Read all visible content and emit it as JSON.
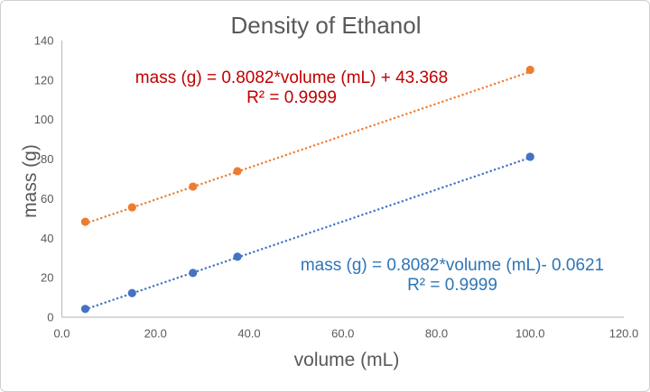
{
  "window": {
    "background": "#ffffff",
    "border_color": "#cfcfcf"
  },
  "chart_data": {
    "type": "scatter",
    "title": "Density of Ethanol",
    "xlabel": "volume (mL)",
    "ylabel": "mass (g)",
    "xlim": [
      0,
      120
    ],
    "ylim": [
      0,
      140
    ],
    "grid": false,
    "legend": "none",
    "title_color": "#595959",
    "axis_label_color": "#595959",
    "tick_label_color": "#595959",
    "axis_line_color": "#bfbfbf",
    "x_tick_values": [
      0,
      20,
      40,
      60,
      80,
      100,
      120
    ],
    "x_tick_labels": [
      "0.0",
      "20.0",
      "40.0",
      "60.0",
      "80.0",
      "100.0",
      "120.0"
    ],
    "y_tick_values": [
      0,
      20,
      40,
      60,
      80,
      100,
      120,
      140
    ],
    "y_tick_labels": [
      "0",
      "20",
      "40",
      "60",
      "80",
      "100",
      "120",
      "140"
    ],
    "series": [
      {
        "id": "orange",
        "marker": "circle",
        "marker_color": "#ED7D31",
        "x": [
          5.0,
          15.0,
          28.0,
          37.5,
          100.0
        ],
        "y": [
          48.3,
          55.6,
          66.1,
          73.9,
          125.2
        ],
        "trendline": {
          "style": "dotted",
          "slope": 0.8082,
          "intercept": 43.368,
          "x_start": 5.0,
          "x_end": 100.0
        },
        "annotation": {
          "equation": "mass (g) = 0.8082*volume (mL) + 43.368",
          "r2": "R² = 0.9999",
          "color": "#C00000"
        }
      },
      {
        "id": "blue",
        "marker": "circle",
        "marker_color": "#4472C4",
        "x": [
          5.0,
          15.0,
          28.0,
          37.5,
          100.0
        ],
        "y": [
          4.2,
          12.2,
          22.4,
          30.6,
          81.2
        ],
        "trendline": {
          "style": "dotted",
          "slope": 0.8082,
          "intercept": -0.0621,
          "x_start": 5.0,
          "x_end": 100.0
        },
        "annotation": {
          "equation": "mass (g) = 0.8082*volume (mL)- 0.0621",
          "r2": "R² = 0.9999",
          "color": "#2E75B6"
        }
      }
    ]
  }
}
